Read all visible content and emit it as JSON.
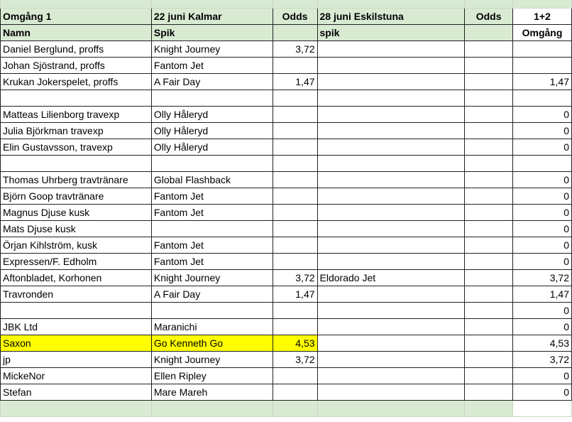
{
  "header1": [
    "Omgång 1",
    "22 juni Kalmar",
    "Odds",
    "28 juni Eskilstuna",
    "Odds",
    "1+2"
  ],
  "header2": [
    "Namn",
    "Spik",
    "",
    "spik",
    "",
    "Omgång"
  ],
  "rows": [
    [
      "Daniel Berglund, proffs",
      "Knight Journey",
      "3,72",
      "",
      "",
      ""
    ],
    [
      "Johan Sjöstrand, proffs",
      "Fantom Jet",
      "",
      "",
      "",
      ""
    ],
    [
      "Krukan Jokerspelet, proffs",
      "A Fair Day",
      "1,47",
      "",
      "",
      "1,47"
    ],
    [
      "",
      "",
      "",
      "",
      "",
      ""
    ],
    [
      "Matteas Lilienborg travexp",
      "Olly Håleryd",
      "",
      "",
      "",
      "0"
    ],
    [
      "Julia Björkman travexp",
      "Olly Håleryd",
      "",
      "",
      "",
      "0"
    ],
    [
      "Elin Gustavsson, travexp",
      "Olly Håleryd",
      "",
      "",
      "",
      "0"
    ],
    [
      "",
      "",
      "",
      "",
      "",
      ""
    ],
    [
      "Thomas Uhrberg travtränare",
      "Global Flashback",
      "",
      "",
      "",
      "0"
    ],
    [
      "Björn Goop travtränare",
      "Fantom Jet",
      "",
      "",
      "",
      "0"
    ],
    [
      "Magnus Djuse kusk",
      "Fantom Jet",
      "",
      "",
      "",
      "0"
    ],
    [
      "Mats Djuse kusk",
      "",
      "",
      "",
      "",
      "0"
    ],
    [
      "Örjan Kihlström, kusk",
      "Fantom Jet",
      "",
      "",
      "",
      "0"
    ],
    [
      "Expressen/F. Edholm",
      "Fantom Jet",
      "",
      "",
      "",
      "0"
    ],
    [
      "Aftonbladet, Korhonen",
      "Knight Journey",
      "3,72",
      "Eldorado Jet",
      "",
      "3,72"
    ],
    [
      "Travronden",
      "A Fair Day",
      "1,47",
      "",
      "",
      "1,47"
    ],
    [
      "",
      "",
      "",
      "",
      "",
      "0"
    ],
    [
      "JBK Ltd",
      "Maranichi",
      "",
      "",
      "",
      "0"
    ],
    [
      "Saxon",
      "Go Kenneth Go",
      "4,53",
      "",
      "",
      "4,53"
    ],
    [
      "jp",
      "Knight Journey",
      "3,72",
      "",
      "",
      "3,72"
    ],
    [
      "MickeNor",
      " Ellen Ripley",
      "",
      "",
      "",
      "0"
    ],
    [
      "Stefan",
      "Mare Mareh",
      "",
      "",
      "",
      "0"
    ]
  ],
  "highlight_row": "Saxon",
  "colors": {
    "header_green": "#d9ead3",
    "highlight": "#ffff00"
  }
}
